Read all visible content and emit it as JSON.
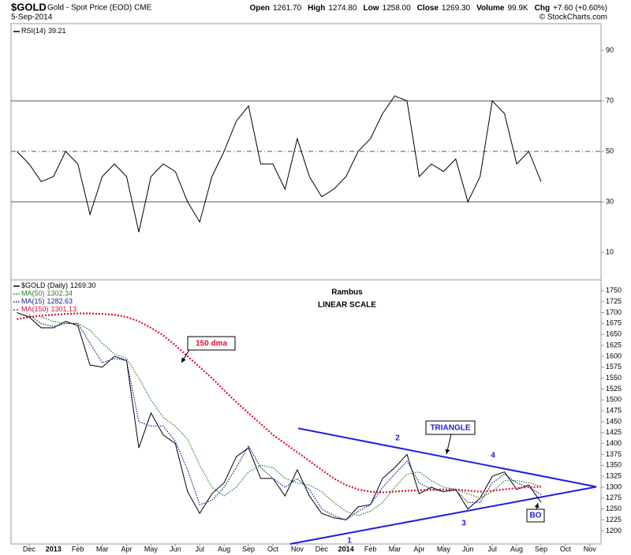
{
  "header": {
    "symbol": "$GOLD",
    "description": "Gold - Spot Price (EOD) CME",
    "date": "5-Sep-2014",
    "quote": [
      {
        "label": "Open",
        "value": "1261.70"
      },
      {
        "label": "High",
        "value": "1274.80"
      },
      {
        "label": "Low",
        "value": "1258.00"
      },
      {
        "label": "Close",
        "value": "1269.30"
      },
      {
        "label": "Volume",
        "value": "99.9K"
      },
      {
        "label": "Chg",
        "value": "+7.60 (+0.60%)"
      }
    ],
    "credit": "© StockCharts.com"
  },
  "chart_data": [
    {
      "type": "line",
      "panel": "rsi",
      "xlim": [
        -0.74,
        23.46
      ],
      "x": [
        -0.5,
        0,
        0.5,
        1,
        1.5,
        2,
        2.5,
        3,
        3.5,
        4,
        4.5,
        5,
        5.5,
        6,
        6.5,
        7,
        7.5,
        8,
        8.5,
        9,
        9.5,
        10,
        10.5,
        11,
        11.5,
        12,
        12.5,
        13,
        13.5,
        14,
        14.5,
        15,
        15.5,
        16,
        16.5,
        17,
        17.5,
        18,
        18.5,
        19,
        19.5,
        20,
        20.5,
        21
      ],
      "ylim": [
        0,
        100
      ],
      "yticks": [
        10,
        30,
        50,
        70,
        90
      ],
      "levels": [
        {
          "value": 70,
          "style": "solid"
        },
        {
          "value": 50,
          "style": "dashdot"
        },
        {
          "value": 30,
          "style": "solid"
        }
      ],
      "series": [
        {
          "name": "RSI(14)",
          "last": "39.21",
          "color": "#000000",
          "values": [
            50,
            45,
            38,
            40,
            50,
            45,
            25,
            40,
            45,
            40,
            18,
            40,
            45,
            42,
            30,
            22,
            40,
            50,
            62,
            68,
            45,
            45,
            35,
            55,
            40,
            32,
            35,
            40,
            50,
            55,
            65,
            72,
            70,
            40,
            45,
            42,
            47,
            30,
            40,
            70,
            65,
            45,
            50,
            38
          ]
        }
      ]
    },
    {
      "type": "line",
      "panel": "price",
      "title": "Rambus",
      "subtitle": "LINEAR SCALE",
      "xlim": [
        -0.74,
        23.46
      ],
      "x": [
        -0.5,
        0,
        0.5,
        1,
        1.5,
        2,
        2.5,
        3,
        3.5,
        4,
        4.5,
        5,
        5.5,
        6,
        6.5,
        7,
        7.5,
        8,
        8.5,
        9,
        9.5,
        10,
        10.5,
        11,
        11.5,
        12,
        12.5,
        13,
        13.5,
        14,
        14.5,
        15,
        15.5,
        16,
        16.5,
        17,
        17.5,
        18,
        18.5,
        19,
        19.5,
        20,
        20.5,
        21
      ],
      "xticks": [
        {
          "value": 0,
          "label": "Dec"
        },
        {
          "value": 1,
          "label": "2013"
        },
        {
          "value": 2,
          "label": "Feb"
        },
        {
          "value": 3,
          "label": "Mar"
        },
        {
          "value": 4,
          "label": "Apr"
        },
        {
          "value": 5,
          "label": "May"
        },
        {
          "value": 6,
          "label": "Jun"
        },
        {
          "value": 7,
          "label": "Jul"
        },
        {
          "value": 8,
          "label": "Aug"
        },
        {
          "value": 9,
          "label": "Sep"
        },
        {
          "value": 10,
          "label": "Oct"
        },
        {
          "value": 11,
          "label": "Nov"
        },
        {
          "value": 12,
          "label": "Dec"
        },
        {
          "value": 13,
          "label": "2014"
        },
        {
          "value": 14,
          "label": "Feb"
        },
        {
          "value": 15,
          "label": "Mar"
        },
        {
          "value": 16,
          "label": "Apr"
        },
        {
          "value": 17,
          "label": "May"
        },
        {
          "value": 18,
          "label": "Jun"
        },
        {
          "value": 19,
          "label": "Jul"
        },
        {
          "value": 20,
          "label": "Aug"
        },
        {
          "value": 21,
          "label": "Sep"
        },
        {
          "value": 22,
          "label": "Oct"
        },
        {
          "value": 23,
          "label": "Nov"
        }
      ],
      "ylim": [
        1170,
        1775
      ],
      "yticks": [
        1200,
        1225,
        1250,
        1275,
        1300,
        1325,
        1350,
        1375,
        1400,
        1425,
        1450,
        1475,
        1500,
        1525,
        1550,
        1575,
        1600,
        1625,
        1650,
        1675,
        1700,
        1725,
        1750
      ],
      "series": [
        {
          "name": "$GOLD (Daily)",
          "last": "1269.30",
          "color": "#000000",
          "style": "solid",
          "values": [
            1700,
            1690,
            1665,
            1665,
            1680,
            1670,
            1580,
            1575,
            1600,
            1590,
            1390,
            1470,
            1420,
            1400,
            1290,
            1240,
            1285,
            1310,
            1370,
            1390,
            1320,
            1320,
            1280,
            1340,
            1280,
            1240,
            1230,
            1225,
            1255,
            1260,
            1320,
            1345,
            1375,
            1285,
            1300,
            1290,
            1295,
            1250,
            1275,
            1325,
            1335,
            1295,
            1305,
            1265
          ]
        },
        {
          "name": "MA(50)",
          "last": "1302.34",
          "color": "#2e7d2e",
          "style": "dotted",
          "values": [
            null,
            null,
            1690,
            1680,
            1675,
            1675,
            1660,
            1630,
            1605,
            1595,
            1550,
            1500,
            1460,
            1440,
            1410,
            1350,
            1300,
            1280,
            1300,
            1335,
            1350,
            1345,
            1320,
            1310,
            1305,
            1290,
            1265,
            1245,
            1235,
            1245,
            1265,
            1300,
            1330,
            1335,
            1315,
            1300,
            1295,
            1285,
            1275,
            1290,
            1315,
            1315,
            1310,
            1302
          ]
        },
        {
          "name": "MA(15)",
          "last": "1282.63",
          "color": "#1a1a8c",
          "style": "dotted",
          "values": [
            null,
            1695,
            1675,
            1668,
            1675,
            1675,
            1630,
            1585,
            1595,
            1590,
            1450,
            1440,
            1440,
            1405,
            1340,
            1260,
            1270,
            1300,
            1345,
            1395,
            1345,
            1320,
            1300,
            1320,
            1295,
            1250,
            1235,
            1225,
            1245,
            1260,
            1300,
            1330,
            1360,
            1310,
            1295,
            1290,
            1293,
            1265,
            1265,
            1310,
            1330,
            1310,
            1300,
            1283
          ]
        },
        {
          "name": "MA(150)",
          "last": "1301.13",
          "color": "#e0102a",
          "style": "dotted-thick",
          "values": [
            1685,
            1690,
            1693,
            1695,
            1697,
            1698,
            1698,
            1697,
            1695,
            1690,
            1680,
            1665,
            1648,
            1625,
            1600,
            1575,
            1550,
            1522,
            1495,
            1470,
            1445,
            1420,
            1400,
            1380,
            1360,
            1340,
            1320,
            1305,
            1295,
            1290,
            1288,
            1290,
            1292,
            1293,
            1294,
            1295,
            1295,
            1292,
            1290,
            1292,
            1295,
            1298,
            1300,
            1301
          ]
        }
      ],
      "trendlines": [
        {
          "color": "#1f1fe0",
          "x": [
            11.04,
            23.27
          ],
          "values": [
            1435,
            1301
          ]
        },
        {
          "color": "#1f1fe0",
          "x": [
            10.71,
            23.27
          ],
          "values": [
            1170,
            1301
          ]
        }
      ],
      "annotations": [
        "150 dma",
        "TRIANGLE",
        "1",
        "2",
        "3",
        "4",
        "BO"
      ]
    }
  ]
}
